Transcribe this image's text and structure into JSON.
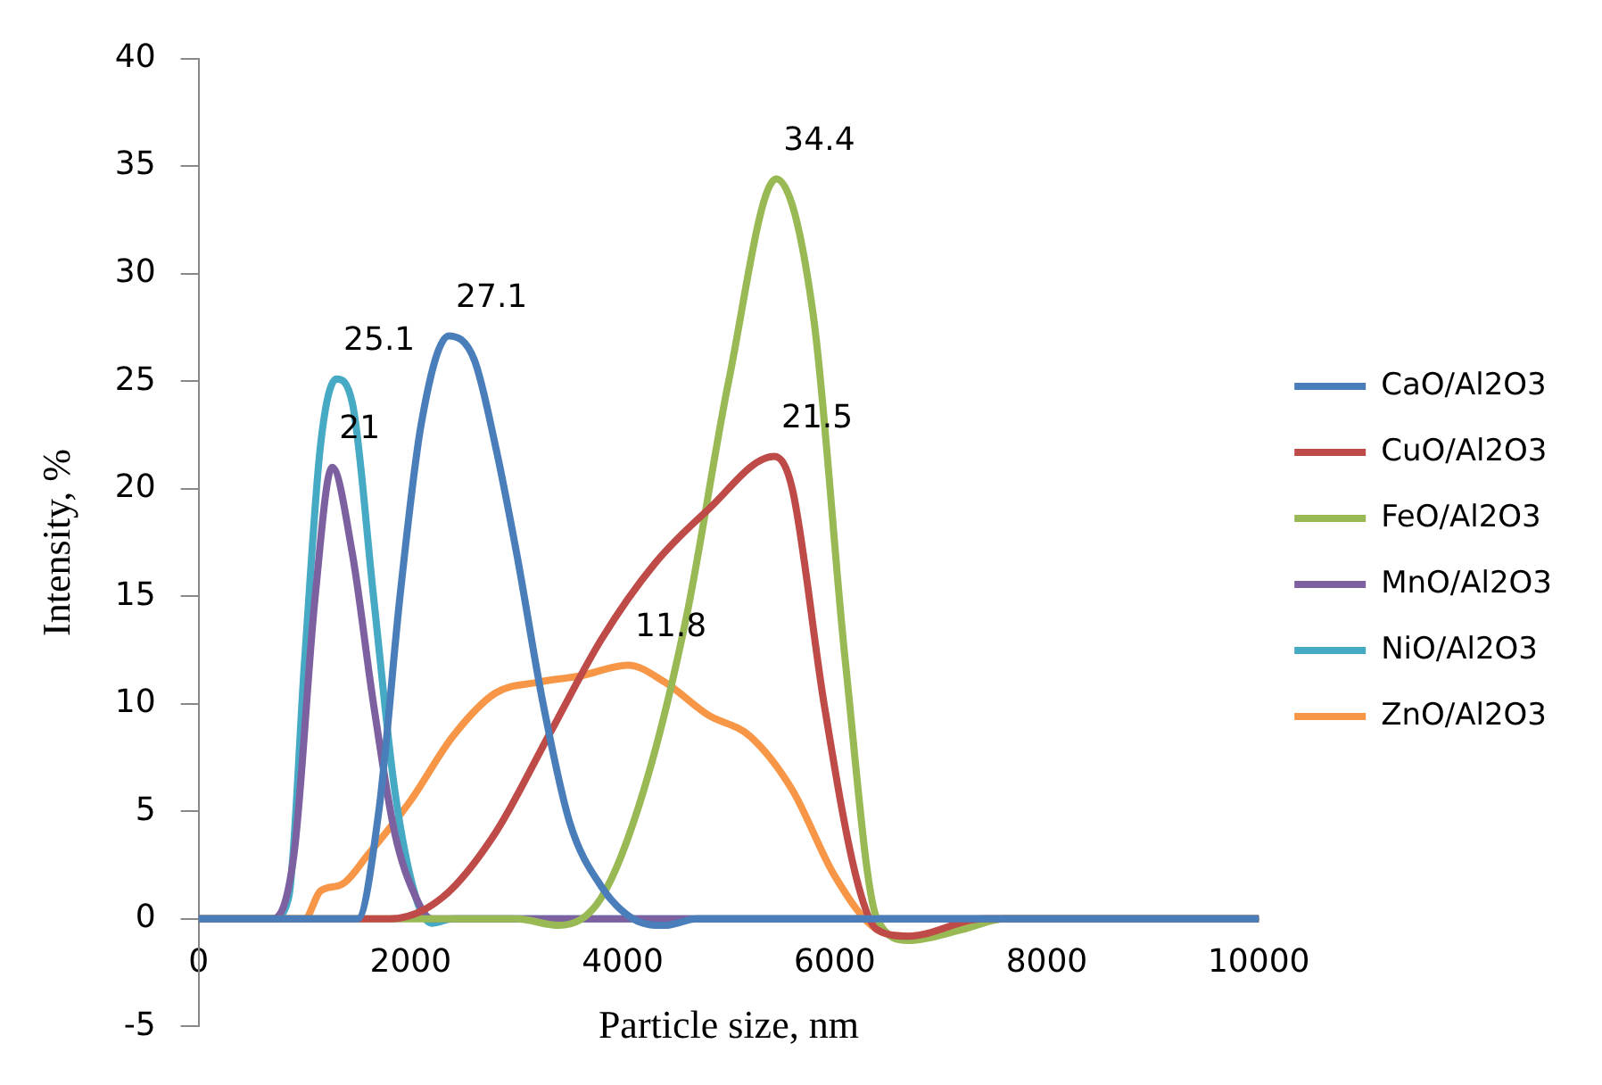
{
  "chart_data": {
    "type": "line",
    "xlabel": "Particle size, nm",
    "ylabel": "Intensity, %",
    "xlim": [
      0,
      10000
    ],
    "xticks": [
      0,
      2000,
      4000,
      6000,
      8000,
      10000
    ],
    "ylim": [
      -5,
      40
    ],
    "yticks": [
      -5,
      0,
      5,
      10,
      15,
      20,
      25,
      30,
      35,
      40
    ],
    "grid": false,
    "legend": "right",
    "marker": "none",
    "line_style": "solid",
    "series": [
      {
        "name": "CaO/Al2O3",
        "color": "#4a7ebb",
        "x": [
          0,
          1500,
          1700,
          1900,
          2100,
          2360,
          2600,
          2800,
          3000,
          3250,
          3500,
          3800,
          4100,
          4400,
          4700,
          10000
        ],
        "values": [
          0,
          0,
          5,
          15,
          23,
          27.1,
          26,
          22,
          17,
          10,
          4.5,
          1.5,
          0,
          -0.3,
          0,
          0
        ]
      },
      {
        "name": "CuO/Al2O3",
        "color": "#be4b48",
        "x": [
          0,
          1800,
          2300,
          2800,
          3300,
          3800,
          4300,
          4800,
          5430,
          5600,
          5900,
          6200,
          6400,
          6700,
          7400,
          10000
        ],
        "values": [
          0,
          0,
          1,
          4,
          8.5,
          13,
          16.5,
          19,
          21.5,
          20,
          10,
          2,
          -0.5,
          -0.8,
          0,
          0
        ]
      },
      {
        "name": "FeO/Al2O3",
        "color": "#98b954",
        "x": [
          0,
          3000,
          3400,
          3800,
          4200,
          4600,
          5000,
          5450,
          5800,
          6100,
          6400,
          6700,
          7200,
          7600,
          10000
        ],
        "values": [
          0,
          0,
          -0.3,
          1,
          6,
          14,
          25,
          34.4,
          28,
          12,
          0,
          -1,
          -0.5,
          0,
          0
        ]
      },
      {
        "name": "MnO/Al2O3",
        "color": "#7d60a0",
        "x": [
          0,
          700,
          900,
          1100,
          1260,
          1450,
          1650,
          1850,
          2050,
          2200,
          10000
        ],
        "values": [
          0,
          0,
          3,
          15,
          21,
          17,
          10,
          4,
          1,
          0,
          0
        ]
      },
      {
        "name": "NiO/Al2O3",
        "color": "#46aac5",
        "x": [
          0,
          700,
          850,
          1000,
          1150,
          1300,
          1450,
          1650,
          1850,
          2050,
          2200,
          2400,
          10000
        ],
        "values": [
          0,
          0,
          1,
          12,
          22,
          25.1,
          24,
          15,
          6,
          1,
          -0.2,
          0,
          0
        ]
      },
      {
        "name": "ZnO/Al2O3",
        "color": "#f79646",
        "x": [
          0,
          1000,
          1150,
          1350,
          1600,
          2000,
          2400,
          2800,
          3200,
          3600,
          4050,
          4400,
          4800,
          5200,
          5600,
          6000,
          6400,
          6700,
          7200,
          7600,
          10000
        ],
        "values": [
          0,
          0,
          1.3,
          1.6,
          3,
          5.5,
          8.5,
          10.5,
          11,
          11.3,
          11.8,
          11,
          9.5,
          8.5,
          6,
          2,
          -0.5,
          -0.8,
          -0.3,
          0,
          0
        ]
      }
    ],
    "annotations": [
      {
        "text": "27.1",
        "x": 2360,
        "y": 27.1
      },
      {
        "text": "21.5",
        "x": 5430,
        "y": 21.5
      },
      {
        "text": "34.4",
        "x": 5450,
        "y": 34.4
      },
      {
        "text": "21",
        "x": 1260,
        "y": 21
      },
      {
        "text": "25.1",
        "x": 1300,
        "y": 25.1
      },
      {
        "text": "11.8",
        "x": 4050,
        "y": 11.8
      }
    ]
  }
}
